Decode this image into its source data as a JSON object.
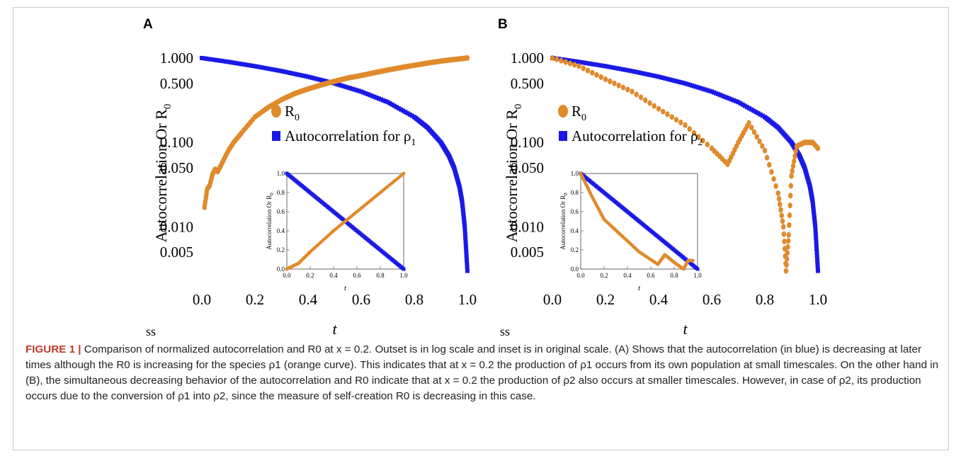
{
  "panels": [
    {
      "letter": "A",
      "ylabel": "Autocorrelation Or R",
      "ylabel_sub": "0",
      "xlabel": "t",
      "ss": "ss",
      "legend": [
        {
          "label": "R",
          "sub": "0",
          "marker": "circle",
          "color": "#e08a2c"
        },
        {
          "label": "Autocorrelation for ρ",
          "sub": "1",
          "marker": "square",
          "color": "#1a1ae6"
        }
      ],
      "xticks": [
        "0.0",
        "0.2",
        "0.4",
        "0.6",
        "0.8",
        "1.0"
      ],
      "yticks": [
        "1.000",
        "0.500",
        "0.100",
        "0.050",
        "0.010",
        "0.005"
      ],
      "inset": {
        "xlabel": "t",
        "ylabel": "Autocorrelation Or R",
        "ylabel_sub": "0",
        "xticks": [
          "0.0",
          "0.2",
          "0.4",
          "0.6",
          "0.8",
          "1.0"
        ],
        "yticks": [
          "0.0",
          "0.2",
          "0.4",
          "0.6",
          "0.8",
          "1.0"
        ]
      }
    },
    {
      "letter": "B",
      "ylabel": "Autocorrelation Or R",
      "ylabel_sub": "0",
      "xlabel": "t",
      "ss": "ss",
      "legend": [
        {
          "label": "R",
          "sub": "0",
          "marker": "circle",
          "color": "#e08a2c"
        },
        {
          "label": "Autocorrelation for ρ",
          "sub": "2",
          "marker": "square",
          "color": "#1a1ae6"
        }
      ],
      "xticks": [
        "0.0",
        "0.2",
        "0.4",
        "0.6",
        "0.8",
        "1.0"
      ],
      "yticks": [
        "1.000",
        "0.500",
        "0.100",
        "0.050",
        "0.010",
        "0.005"
      ],
      "inset": {
        "xlabel": "t",
        "ylabel": "Autocorrelation Or R",
        "ylabel_sub": "0",
        "xticks": [
          "0.0",
          "0.2",
          "0.4",
          "0.6",
          "0.8",
          "1.0"
        ],
        "yticks": [
          "0.0",
          "0.2",
          "0.4",
          "0.6",
          "0.8",
          "1.0"
        ]
      }
    }
  ],
  "chart_data": [
    {
      "type": "scatter",
      "panel": "A",
      "xlabel": "t",
      "ylabel": "Autocorrelation Or R0",
      "yscale": "log",
      "xlim": [
        0,
        1
      ],
      "ylim": [
        0.0025,
        1.1
      ],
      "series": [
        {
          "name": "R0",
          "color": "#e08a2c",
          "x": [
            0.01,
            0.02,
            0.03,
            0.04,
            0.05,
            0.06,
            0.08,
            0.1,
            0.12,
            0.15,
            0.2,
            0.25,
            0.3,
            0.35,
            0.4,
            0.45,
            0.5,
            0.55,
            0.6,
            0.65,
            0.7,
            0.75,
            0.8,
            0.85,
            0.9,
            0.95,
            1.0
          ],
          "y": [
            0.017,
            0.028,
            0.031,
            0.042,
            0.048,
            0.045,
            0.06,
            0.08,
            0.1,
            0.13,
            0.2,
            0.26,
            0.32,
            0.38,
            0.43,
            0.48,
            0.53,
            0.58,
            0.62,
            0.67,
            0.72,
            0.77,
            0.82,
            0.87,
            0.92,
            0.96,
            1.0
          ]
        },
        {
          "name": "Autocorrelation for ρ1",
          "color": "#1a1ae6",
          "x": [
            0.0,
            0.1,
            0.2,
            0.3,
            0.4,
            0.5,
            0.6,
            0.7,
            0.8,
            0.85,
            0.9,
            0.93,
            0.95,
            0.97,
            0.98,
            0.99,
            1.0
          ],
          "y": [
            1.0,
            0.9,
            0.8,
            0.7,
            0.6,
            0.5,
            0.4,
            0.3,
            0.2,
            0.15,
            0.1,
            0.07,
            0.05,
            0.03,
            0.02,
            0.01,
            0.003
          ]
        }
      ],
      "inset": {
        "type": "scatter",
        "xlim": [
          0,
          1
        ],
        "ylim": [
          0,
          1
        ],
        "series": [
          {
            "name": "R0",
            "x": [
              0.0,
              0.1,
              0.2,
              0.4,
              0.6,
              0.8,
              1.0
            ],
            "y": [
              0.0,
              0.06,
              0.18,
              0.4,
              0.6,
              0.8,
              1.0
            ]
          },
          {
            "name": "Autocorrelation for ρ1",
            "x": [
              0.0,
              0.2,
              0.4,
              0.6,
              0.8,
              1.0
            ],
            "y": [
              1.0,
              0.8,
              0.6,
              0.4,
              0.2,
              0.0
            ]
          }
        ]
      }
    },
    {
      "type": "scatter",
      "panel": "B",
      "xlabel": "t",
      "ylabel": "Autocorrelation Or R0",
      "yscale": "log",
      "xlim": [
        0,
        1
      ],
      "ylim": [
        0.0025,
        1.1
      ],
      "series": [
        {
          "name": "R0",
          "color": "#e08a2c",
          "x": [
            0.0,
            0.1,
            0.2,
            0.3,
            0.4,
            0.5,
            0.6,
            0.66,
            0.7,
            0.74,
            0.8,
            0.85,
            0.87,
            0.88,
            0.89,
            0.9,
            0.92,
            0.95,
            0.98,
            1.0
          ],
          "y": [
            1.0,
            0.8,
            0.56,
            0.4,
            0.25,
            0.16,
            0.085,
            0.055,
            0.1,
            0.17,
            0.08,
            0.025,
            0.01,
            0.003,
            0.008,
            0.04,
            0.09,
            0.1,
            0.1,
            0.085
          ]
        },
        {
          "name": "Autocorrelation for ρ2",
          "color": "#1a1ae6",
          "x": [
            0.0,
            0.1,
            0.2,
            0.3,
            0.4,
            0.5,
            0.6,
            0.7,
            0.8,
            0.85,
            0.9,
            0.93,
            0.95,
            0.97,
            0.98,
            0.99,
            1.0
          ],
          "y": [
            1.0,
            0.9,
            0.8,
            0.7,
            0.6,
            0.5,
            0.4,
            0.3,
            0.2,
            0.15,
            0.1,
            0.07,
            0.05,
            0.03,
            0.02,
            0.01,
            0.003
          ]
        }
      ],
      "inset": {
        "type": "scatter",
        "xlim": [
          0,
          1
        ],
        "ylim": [
          0,
          1
        ],
        "series": [
          {
            "name": "R0",
            "x": [
              0.0,
              0.1,
              0.2,
              0.35,
              0.5,
              0.66,
              0.72,
              0.8,
              0.88,
              0.92,
              0.96
            ],
            "y": [
              1.0,
              0.75,
              0.52,
              0.35,
              0.18,
              0.05,
              0.15,
              0.07,
              0.0,
              0.09,
              0.09
            ]
          },
          {
            "name": "Autocorrelation for ρ2",
            "x": [
              0.0,
              0.2,
              0.4,
              0.6,
              0.8,
              1.0
            ],
            "y": [
              1.0,
              0.8,
              0.6,
              0.4,
              0.2,
              0.0
            ]
          }
        ]
      }
    }
  ],
  "caption": {
    "label": "FIGURE 1 |",
    "text": " Comparison of normalized autocorrelation and R0 at x = 0.2. Outset is in log scale and inset is in original scale. (A) Shows that the autocorrelation (in blue) is decreasing at later times although the R0 is increasing for the species ρ1 (orange curve). This indicates that at x = 0.2 the production of ρ1 occurs from its own population at small timescales. On the other hand in (B), the simultaneous decreasing behavior of the autocorrelation and R0 indicate that at x = 0.2 the production of ρ2 also occurs at smaller timescales. However, in case of ρ2, its production occurs due to the conversion of ρ1 into ρ2, since the measure of self-creation R0 is decreasing in this case."
  }
}
